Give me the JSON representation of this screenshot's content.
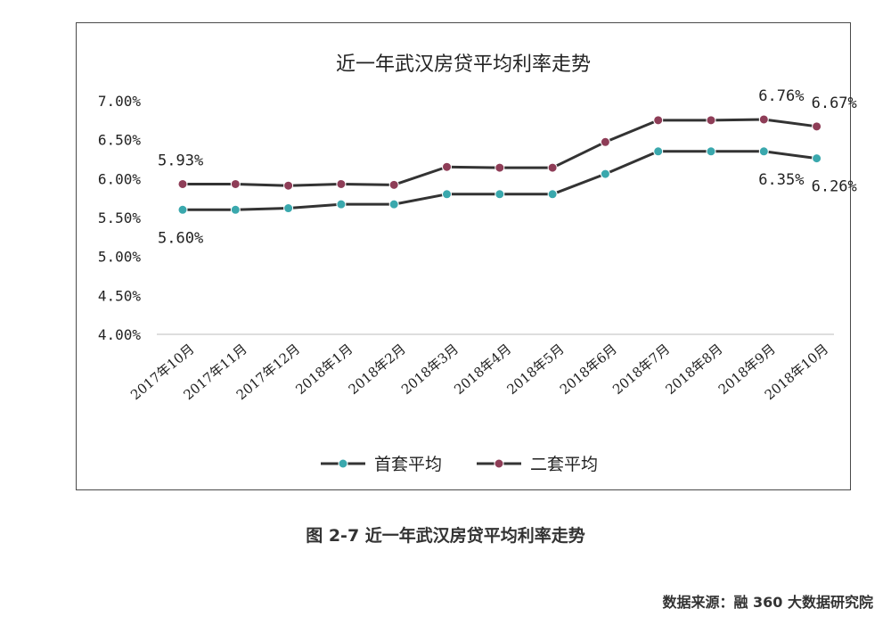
{
  "caption": "图 2-7 近一年武汉房贷平均利率走势",
  "source": "数据来源：融 360 大数据研究院",
  "chart_data": {
    "type": "line",
    "title": "近一年武汉房贷平均利率走势",
    "categories": [
      "2017年10月",
      "2017年11月",
      "2017年12月",
      "2018年1月",
      "2018年2月",
      "2018年3月",
      "2018年4月",
      "2018年5月",
      "2018年6月",
      "2018年7月",
      "2018年8月",
      "2018年9月",
      "2018年10月"
    ],
    "series": [
      {
        "name": "首套平均",
        "color": "#3aa8ad",
        "values": [
          5.6,
          5.6,
          5.62,
          5.67,
          5.67,
          5.8,
          5.8,
          5.8,
          6.06,
          6.35,
          6.35,
          6.35,
          6.26
        ]
      },
      {
        "name": "二套平均",
        "color": "#8e3d57",
        "values": [
          5.93,
          5.93,
          5.91,
          5.93,
          5.92,
          6.15,
          6.14,
          6.14,
          6.47,
          6.75,
          6.75,
          6.76,
          6.67
        ]
      }
    ],
    "ylim": [
      4.0,
      7.0
    ],
    "yticks": [
      "4.00%",
      "4.50%",
      "5.00%",
      "5.50%",
      "6.00%",
      "6.50%",
      "7.00%"
    ],
    "data_labels": [
      {
        "text": "5.93%",
        "series": 1,
        "index": 0,
        "pos": "above"
      },
      {
        "text": "5.60%",
        "series": 0,
        "index": 0,
        "pos": "below"
      },
      {
        "text": "6.76%",
        "series": 1,
        "index": 11,
        "pos": "above"
      },
      {
        "text": "6.67%",
        "series": 1,
        "index": 12,
        "pos": "above"
      },
      {
        "text": "6.35%",
        "series": 0,
        "index": 11,
        "pos": "below"
      },
      {
        "text": "6.26%",
        "series": 0,
        "index": 12,
        "pos": "below"
      }
    ],
    "legend": "bottom-center",
    "grid": false
  }
}
